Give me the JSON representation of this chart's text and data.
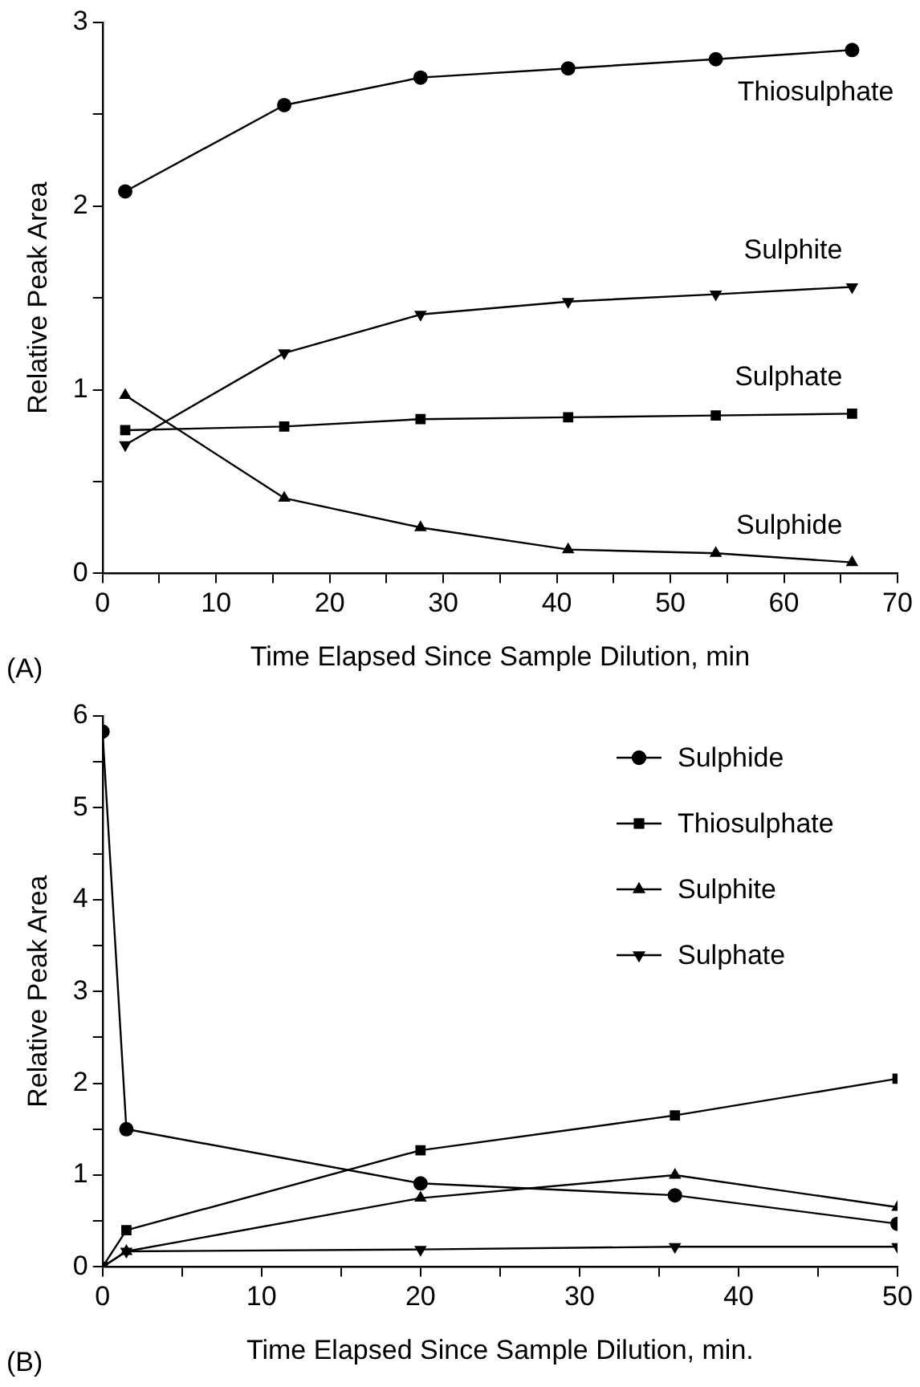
{
  "chart_data": [
    {
      "type": "line",
      "ylabel": "Relative Peak Area",
      "xlabel": "Time Elapsed Since Sample Dilution, min",
      "annotations": [
        "(A)"
      ],
      "legend": false,
      "grid": false,
      "line_style": "solid",
      "xlim": [
        0,
        70
      ],
      "xticks": [
        0,
        {
          "value": 5,
          "label": null
        },
        10,
        {
          "value": 15,
          "label": null
        },
        20,
        {
          "value": 25,
          "label": null
        },
        30,
        {
          "value": 35,
          "label": null
        },
        40,
        {
          "value": 45,
          "label": null
        },
        50,
        {
          "value": 55,
          "label": null
        },
        60,
        {
          "value": 65,
          "label": null
        },
        70
      ],
      "ylim": [
        0,
        3
      ],
      "yticks": [
        0,
        {
          "value": 0.5,
          "label": null
        },
        1,
        {
          "value": 1.5,
          "label": null
        },
        2,
        {
          "value": 2.5,
          "label": null
        },
        3
      ],
      "x": [
        2,
        16,
        28,
        41,
        54,
        66
      ],
      "series": [
        {
          "name": "Thiosulphate",
          "color": "#000000",
          "marker": "circle",
          "values": [
            2.08,
            2.55,
            2.7,
            2.75,
            2.8,
            2.85
          ]
        },
        {
          "name": "Sulphite",
          "color": "#000000",
          "marker": "triangle-down",
          "values": [
            0.7,
            1.2,
            1.41,
            1.48,
            1.52,
            1.56
          ]
        },
        {
          "name": "Sulphate",
          "color": "#000000",
          "marker": "square",
          "values": [
            0.78,
            0.8,
            0.84,
            0.85,
            0.86,
            0.87
          ]
        },
        {
          "name": "Sulphide",
          "color": "#000000",
          "marker": "triangle",
          "values": [
            0.97,
            0.41,
            0.25,
            0.13,
            0.11,
            0.06
          ]
        }
      ]
    },
    {
      "type": "line",
      "ylabel": "Relative Peak Area",
      "xlabel": "Time Elapsed Since Sample Dilution, min.",
      "annotations": [
        "(B)"
      ],
      "legend": "top right",
      "grid": false,
      "line_style": "solid",
      "xlim": [
        0,
        50
      ],
      "xticks": [
        0,
        {
          "value": 5,
          "label": null
        },
        10,
        {
          "value": 15,
          "label": null
        },
        20,
        {
          "value": 25,
          "label": null
        },
        30,
        {
          "value": 35,
          "label": null
        },
        40,
        {
          "value": 45,
          "label": null
        },
        50
      ],
      "ylim": [
        0,
        6
      ],
      "yticks": [
        0,
        {
          "value": 0.5,
          "label": null
        },
        1,
        {
          "value": 1.5,
          "label": null
        },
        2,
        {
          "value": 2.5,
          "label": null
        },
        3,
        {
          "value": 3.5,
          "label": null
        },
        4,
        {
          "value": 4.5,
          "label": null
        },
        5,
        {
          "value": 5.5,
          "label": null
        },
        6
      ],
      "x": [
        0,
        1.5,
        20,
        36,
        50
      ],
      "series": [
        {
          "name": "Sulphide",
          "color": "#000000",
          "marker": "circle",
          "values": [
            5.83,
            1.5,
            0.91,
            0.78,
            0.47
          ]
        },
        {
          "name": "Thiosulphate",
          "color": "#000000",
          "marker": "square",
          "values": [
            0,
            0.4,
            1.27,
            1.65,
            2.05
          ]
        },
        {
          "name": "Sulphite",
          "color": "#000000",
          "marker": "triangle",
          "values": [
            0,
            0.17,
            0.75,
            1.0,
            0.65
          ]
        },
        {
          "name": "Sulphate",
          "color": "#000000",
          "marker": "triangle-down",
          "values": [
            0,
            0.17,
            0.19,
            0.22,
            0.22
          ]
        }
      ]
    }
  ]
}
